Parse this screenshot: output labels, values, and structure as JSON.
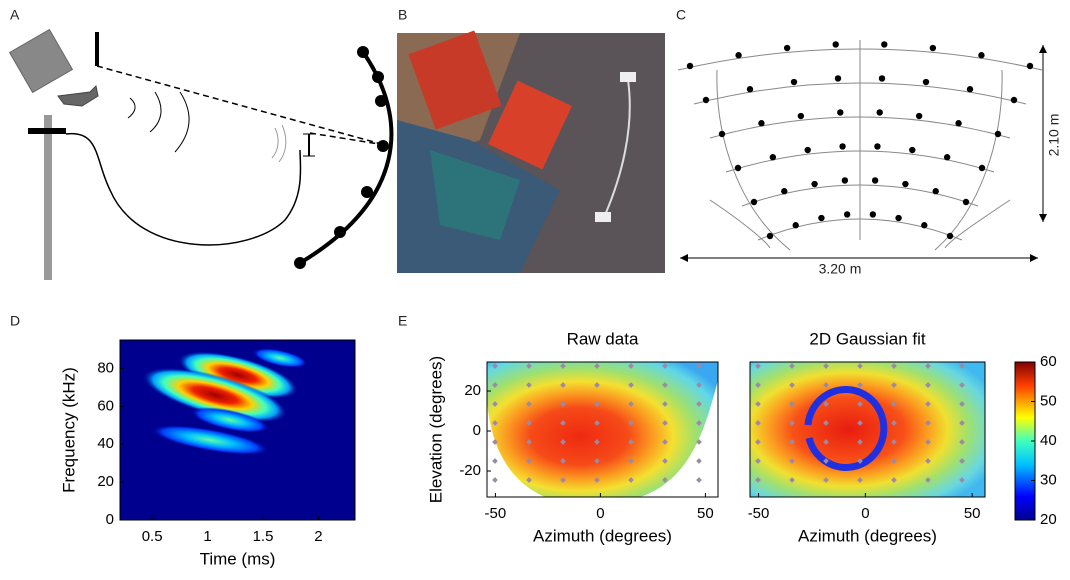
{
  "panel_labels": [
    "A",
    "B",
    "C",
    "D",
    "E"
  ],
  "panel_c": {
    "width_label": "3.20 m",
    "height_label": "2.10 m"
  },
  "chart_data": [
    {
      "type": "spectrogram",
      "xlabel": "Time (ms)",
      "ylabel": "Frequency (kHz)",
      "xlim": [
        0.21,
        2.33
      ],
      "ylim": [
        0,
        95
      ],
      "xticks": [
        0.5,
        1,
        1.5,
        2
      ],
      "yticks": [
        0,
        20,
        40,
        60,
        80
      ]
    },
    {
      "type": "raw-map",
      "title": "Raw data",
      "xlabel": "Azimuth (degrees)",
      "ylabel": "Elevation (degrees)",
      "xlim": [
        -54,
        56
      ],
      "ylim": [
        -33,
        34.5
      ],
      "xticks": [
        -50,
        0,
        50
      ],
      "yticks": [
        -20,
        0,
        20
      ]
    },
    {
      "type": "fit-map",
      "title": "2D Gaussian fit",
      "xlabel": "Azimuth (degrees)",
      "xlim": [
        -54,
        56
      ],
      "ylim": [
        -33,
        34.5
      ],
      "xticks": [
        -50,
        0,
        50
      ]
    },
    {
      "type": "colorbar",
      "ylim": [
        20,
        60
      ],
      "yticks": [
        20,
        30,
        40,
        50,
        60
      ]
    }
  ]
}
